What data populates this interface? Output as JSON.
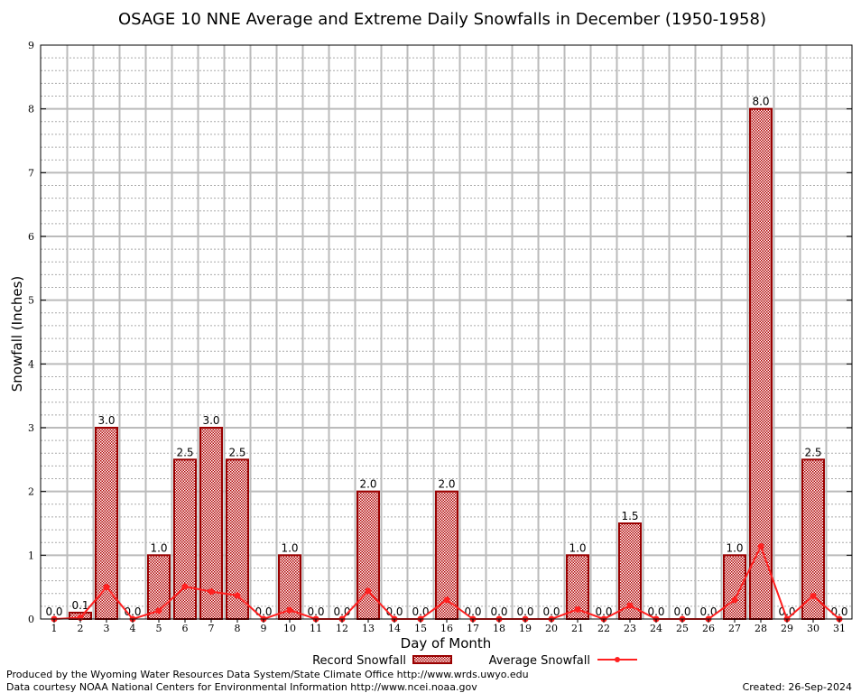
{
  "chart_data": {
    "type": "bar",
    "title": "OSAGE 10 NNE Average and Extreme Daily Snowfalls in December (1950-1958)",
    "xlabel": "Day of Month",
    "ylabel": "Snowfall (Inches)",
    "ylim": [
      0,
      9
    ],
    "yticks": [
      "0",
      "1",
      "2",
      "3",
      "4",
      "5",
      "6",
      "7",
      "8",
      "9"
    ],
    "categories": [
      "1",
      "2",
      "3",
      "4",
      "5",
      "6",
      "7",
      "8",
      "9",
      "10",
      "11",
      "12",
      "13",
      "14",
      "15",
      "16",
      "17",
      "18",
      "19",
      "20",
      "21",
      "22",
      "23",
      "24",
      "25",
      "26",
      "27",
      "28",
      "29",
      "30",
      "31"
    ],
    "series": [
      {
        "name": "Record Snowfall",
        "type": "bar",
        "values": [
          0.0,
          0.1,
          3.0,
          0.0,
          1.0,
          2.5,
          3.0,
          2.5,
          0.0,
          1.0,
          0.0,
          0.0,
          2.0,
          0.0,
          0.0,
          2.0,
          0.0,
          0.0,
          0.0,
          0.0,
          1.0,
          0.0,
          1.5,
          0.0,
          0.0,
          0.0,
          1.0,
          8.0,
          0.0,
          2.5,
          0.0
        ],
        "labels": [
          "0.0",
          "0.1",
          "3.0",
          "0.0",
          "1.0",
          "2.5",
          "3.0",
          "2.5",
          "0.0",
          "1.0",
          "0.0",
          "0.0",
          "2.0",
          "0.0",
          "0.0",
          "2.0",
          "0.0",
          "0.0",
          "0.0",
          "0.0",
          "1.0",
          "0.0",
          "1.5",
          "0.0",
          "0.0",
          "0.0",
          "1.0",
          "8.0",
          "0.0",
          "2.5",
          "0.0"
        ]
      },
      {
        "name": "Average Snowfall",
        "type": "line",
        "values": [
          0.0,
          0.02,
          0.5,
          0.0,
          0.13,
          0.51,
          0.43,
          0.37,
          0.0,
          0.14,
          0.0,
          0.0,
          0.44,
          0.0,
          0.0,
          0.3,
          0.0,
          0.0,
          0.0,
          0.0,
          0.15,
          0.0,
          0.21,
          0.0,
          0.0,
          0.0,
          0.3,
          1.14,
          0.0,
          0.36,
          0.0
        ]
      }
    ],
    "grid": true,
    "legend": "bottom-center",
    "colors": {
      "bar": "#990000",
      "line": "#ff2020"
    }
  },
  "footer": {
    "line1": "Produced by the Wyoming Water Resources Data System/State Climate Office http://www.wrds.uwyo.edu",
    "line2": "Data courtesy NOAA National Centers for Environmental Information http://www.ncei.noaa.gov",
    "created": "Created: 26-Sep-2024"
  }
}
